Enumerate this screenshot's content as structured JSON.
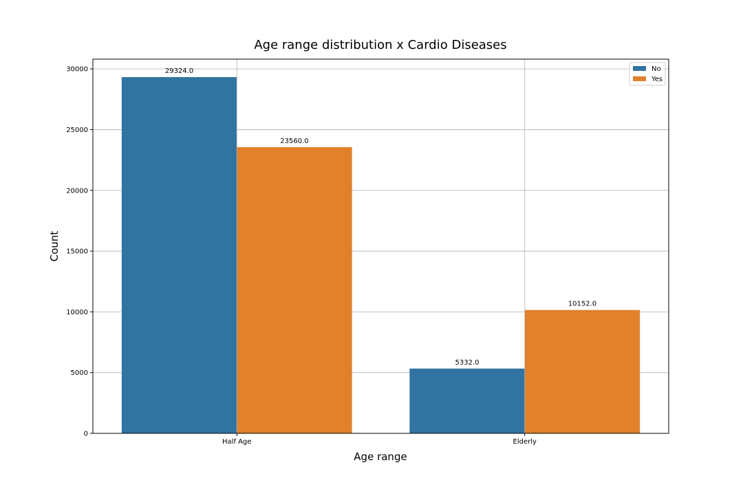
{
  "chart_data": {
    "type": "bar",
    "title": "Age range distribution x Cardio Diseases",
    "xlabel": "Age range",
    "ylabel": "Count",
    "categories": [
      "Half Age",
      "Elderly"
    ],
    "series": [
      {
        "name": "No",
        "color": "#3274a1",
        "values": [
          29324.0,
          5332.0
        ],
        "value_labels": [
          "29324.0",
          "5332.0"
        ]
      },
      {
        "name": "Yes",
        "color": "#e1812c",
        "values": [
          23560.0,
          10152.0
        ],
        "value_labels": [
          "23560.0",
          "10152.0"
        ]
      }
    ],
    "ylim": [
      0,
      30800
    ],
    "yticks": [
      0,
      5000,
      10000,
      15000,
      20000,
      25000,
      30000
    ],
    "ytick_labels": [
      "0",
      "5000",
      "10000",
      "15000",
      "20000",
      "25000",
      "30000"
    ],
    "grid": true,
    "legend_position": "top-right"
  }
}
